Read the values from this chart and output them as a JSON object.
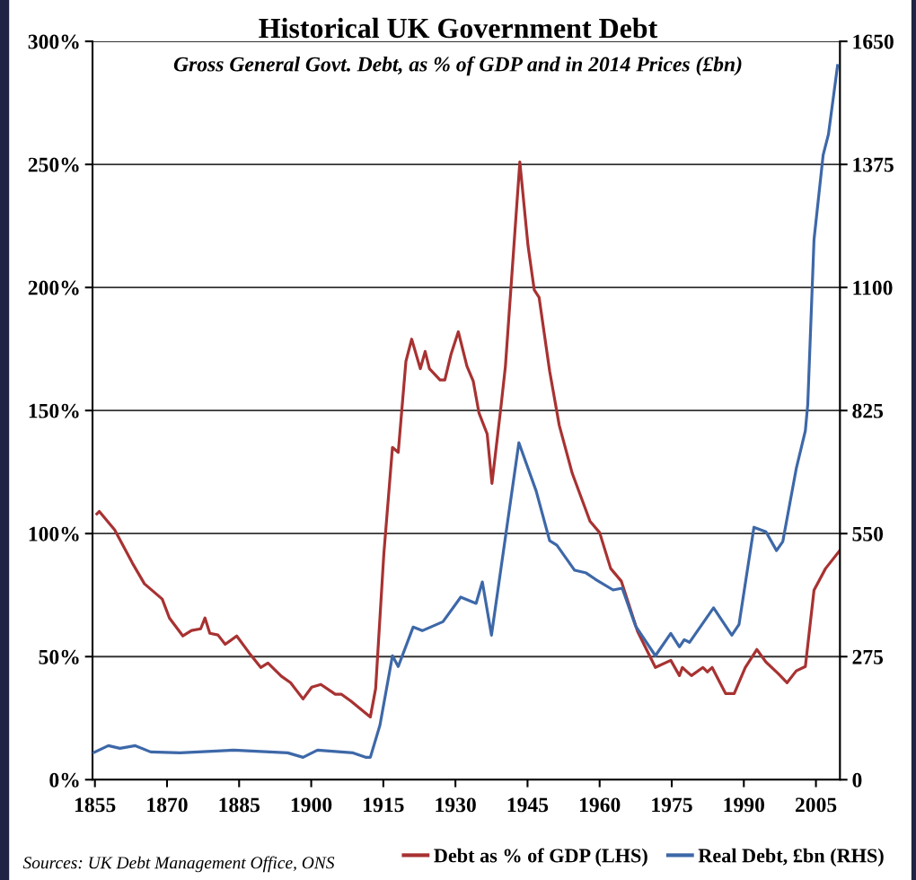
{
  "chart_data": {
    "type": "line",
    "title": "Historical UK Government Debt",
    "subtitle": "Gross General Govt. Debt, as % of GDP and in 2014 Prices (£bn)",
    "xlim": [
      1854.5,
      2010
    ],
    "xticks": [
      1855,
      1870,
      1885,
      1900,
      1915,
      1930,
      1945,
      1960,
      1975,
      1990,
      2005
    ],
    "ylim": [
      0,
      300
    ],
    "yticks": [
      {
        "value": 0,
        "label": "0%"
      },
      {
        "value": 50,
        "label": "50%"
      },
      {
        "value": 100,
        "label": "100%"
      },
      {
        "value": 150,
        "label": "150%"
      },
      {
        "value": 200,
        "label": "200%"
      },
      {
        "value": 250,
        "label": "250%"
      },
      {
        "value": 300,
        "label": "300%"
      }
    ],
    "y2lim": [
      0,
      1650
    ],
    "y2ticks": [
      0,
      275,
      550,
      825,
      1100,
      1375,
      1650
    ],
    "grid": "y",
    "legend": "bottom right",
    "line_style": "solid",
    "marker": "none",
    "annotations": [
      "Sources: UK Debt Management Office, ONS"
    ],
    "series": [
      {
        "name": "Debt as % of GDP (LHS)",
        "color": "#a83232",
        "x": [
          1855.4,
          1855.9,
          1859.1,
          1862.8,
          1865.3,
          1869,
          1870.5,
          1873.3,
          1875.1,
          1877,
          1877.9,
          1878.9,
          1880.6,
          1882.1,
          1884.5,
          1887.1,
          1889.5,
          1891,
          1893.8,
          1895.7,
          1898.3,
          1900.1,
          1902,
          1905,
          1906.3,
          1908.2,
          1912.3,
          1913.4,
          1915.1,
          1916.9,
          1918.1,
          1919.7,
          1920.9,
          1922.7,
          1923.7,
          1924.6,
          1926.8,
          1927.8,
          1929.1,
          1930.6,
          1932.4,
          1933.7,
          1934.9,
          1936.6,
          1937.6,
          1939.5,
          1940.4,
          1943.4,
          1945.1,
          1946.4,
          1947.4,
          1949.6,
          1951.6,
          1954.3,
          1958,
          1960,
          1962.3,
          1964.5,
          1967.9,
          1971.6,
          1974.8,
          1976.6,
          1977.2,
          1979.1,
          1981.5,
          1982.4,
          1983.4,
          1986.2,
          1988,
          1990.3,
          1992.7,
          1994.6,
          1997.2,
          1999,
          2000.9,
          2002.8,
          2004.6,
          2007,
          2009.9
        ],
        "values": [
          108,
          109,
          101.5,
          88,
          79.6,
          73.4,
          65.7,
          58.4,
          60.6,
          61.3,
          65.7,
          59.5,
          58.8,
          55,
          58.4,
          51.5,
          45.6,
          47.4,
          42,
          39.4,
          32.8,
          37.6,
          38.7,
          34.7,
          34.7,
          32,
          25.5,
          37,
          91.6,
          135,
          133,
          170,
          179,
          167,
          174,
          167,
          162.4,
          162.4,
          173,
          182,
          168,
          162,
          149,
          140.5,
          120.4,
          152,
          168,
          251,
          217,
          199,
          196,
          166,
          144,
          124.5,
          105,
          100.4,
          85.8,
          80.7,
          60.2,
          45.6,
          48.5,
          42.3,
          45.6,
          42.3,
          45.6,
          43.8,
          45.6,
          35,
          35,
          45.6,
          52.9,
          47.8,
          43,
          39.4,
          44.2,
          46,
          77,
          85.8,
          93
        ]
      },
      {
        "name": "Real Debt, £bn (RHS)",
        "color": "#3d68a8",
        "axis": "y2",
        "x": [
          1854.6,
          1857.8,
          1860.2,
          1863.4,
          1866.6,
          1872.7,
          1883.9,
          1895.1,
          1898.3,
          1901.3,
          1908.7,
          1911.3,
          1912.3,
          1914.3,
          1916.9,
          1918.1,
          1921.2,
          1923.1,
          1927.4,
          1931.1,
          1934.3,
          1935.6,
          1937.5,
          1943.2,
          1946.8,
          1949.6,
          1951.1,
          1954.8,
          1957.2,
          1959.1,
          1962.8,
          1964.7,
          1967.5,
          1971.6,
          1974.8,
          1976.6,
          1977.6,
          1978.7,
          1983.7,
          1987.5,
          1989,
          1992.1,
          1994.6,
          1996.8,
          1998.1,
          2000.9,
          2002.8,
          2003.3,
          2004.6,
          2006.5,
          2007.6,
          2009.5
        ],
        "values": [
          60,
          76,
          70,
          76,
          62,
          60,
          66,
          60,
          50,
          66,
          60,
          50,
          50,
          122,
          277,
          253,
          341,
          333,
          353,
          408,
          394,
          442,
          323,
          753,
          645,
          534,
          524,
          468,
          462,
          448,
          424,
          428,
          343,
          277,
          327,
          297,
          313,
          307,
          384,
          323,
          347,
          564,
          554,
          512,
          532,
          695,
          780,
          839,
          1207,
          1396,
          1442,
          1596
        ]
      }
    ]
  }
}
